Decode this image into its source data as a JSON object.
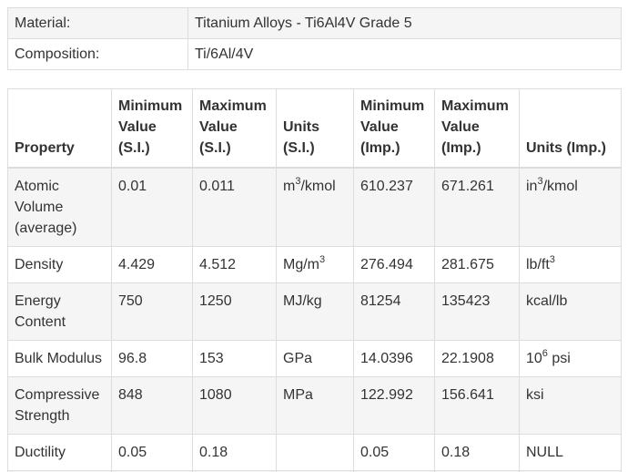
{
  "info": {
    "material_label": "Material:",
    "material_value": "Titanium Alloys - Ti6Al4V Grade 5",
    "composition_label": "Composition:",
    "composition_value": "Ti/6Al/4V"
  },
  "properties": {
    "headers": {
      "property": "Property",
      "min_si": [
        "Minimum",
        "Value",
        "(S.I.)"
      ],
      "max_si": [
        "Maximum",
        "Value",
        "(S.I.)"
      ],
      "units_si": [
        "Units",
        "(S.I.)"
      ],
      "min_imp": [
        "Minimum",
        "Value",
        "(Imp.)"
      ],
      "max_imp": [
        "Maximum",
        "Value",
        "(Imp.)"
      ],
      "units_imp": "Units (Imp.)"
    },
    "rows": [
      {
        "property": "Atomic Volume (average)",
        "min_si": "0.01",
        "max_si": "0.011",
        "units_si": {
          "base": "m",
          "sup": "3",
          "rest": "/kmol"
        },
        "min_imp": "610.237",
        "max_imp": "671.261",
        "units_imp": {
          "base": "in",
          "sup": "3",
          "rest": "/kmol"
        }
      },
      {
        "property": "Density",
        "min_si": "4.429",
        "max_si": "4.512",
        "units_si": {
          "base": "Mg/m",
          "sup": "3",
          "rest": ""
        },
        "min_imp": "276.494",
        "max_imp": "281.675",
        "units_imp": {
          "base": "lb/ft",
          "sup": "3",
          "rest": ""
        }
      },
      {
        "property": "Energy Content",
        "min_si": "750",
        "max_si": "1250",
        "units_si": {
          "base": "MJ/kg",
          "sup": "",
          "rest": ""
        },
        "min_imp": "81254",
        "max_imp": "135423",
        "units_imp": {
          "base": "kcal/lb",
          "sup": "",
          "rest": ""
        }
      },
      {
        "property": "Bulk Modulus",
        "min_si": "96.8",
        "max_si": "153",
        "units_si": {
          "base": "GPa",
          "sup": "",
          "rest": ""
        },
        "min_imp": "14.0396",
        "max_imp": "22.1908",
        "units_imp": {
          "base": "10",
          "sup": "6",
          "rest": " psi"
        }
      },
      {
        "property": "Compressive Strength",
        "min_si": "848",
        "max_si": "1080",
        "units_si": {
          "base": "MPa",
          "sup": "",
          "rest": ""
        },
        "min_imp": "122.992",
        "max_imp": "156.641",
        "units_imp": {
          "base": "ksi",
          "sup": "",
          "rest": ""
        }
      },
      {
        "property": "Ductility",
        "min_si": "0.05",
        "max_si": "0.18",
        "units_si": {
          "base": "",
          "sup": "",
          "rest": ""
        },
        "min_imp": "0.05",
        "max_imp": "0.18",
        "units_imp": {
          "base": "NULL",
          "sup": "",
          "rest": ""
        }
      }
    ]
  }
}
